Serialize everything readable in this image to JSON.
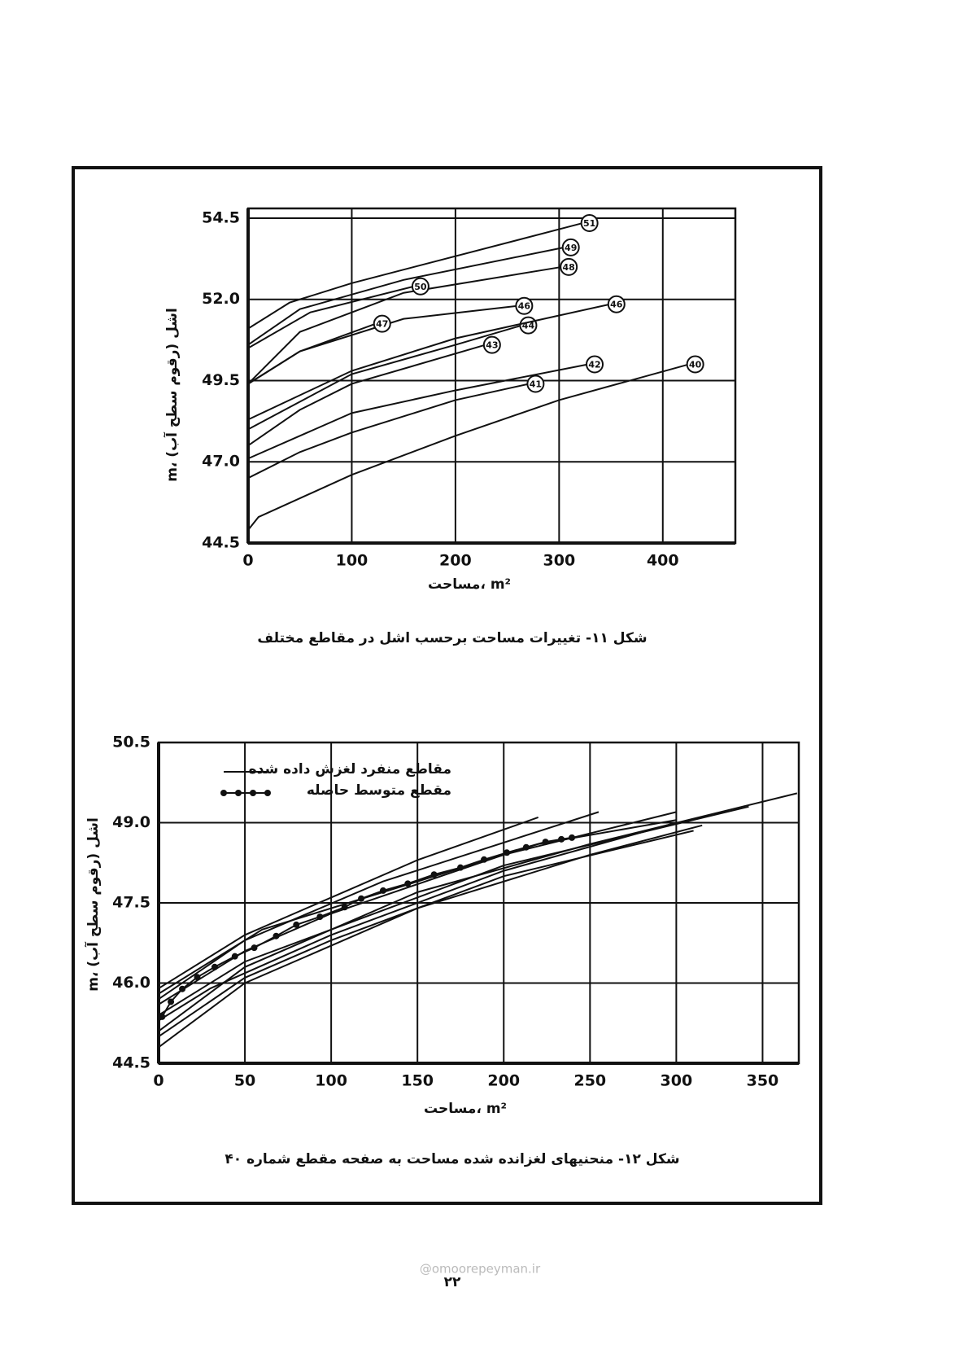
{
  "chart_data": [
    {
      "type": "line",
      "title": "شکل ۱۱- تغییرات مساحت برحسب اشل در مقاطع مختلف",
      "xlabel": "مساحت، m²",
      "ylabel": "m، اشل (رقوم سطح آب)",
      "xlim": [
        0,
        470
      ],
      "ylim": [
        44.5,
        54.8
      ],
      "xticks": [
        0,
        100,
        200,
        300,
        400
      ],
      "yticks": [
        44.5,
        {
          "value": 47,
          "label": "47.0"
        },
        49.5,
        {
          "value": 52,
          "label": "52.0"
        },
        54.5
      ],
      "grid": true,
      "legend": false,
      "series": [
        {
          "name": "40",
          "color": "#111",
          "x": [
            0,
            10,
            100,
            200,
            300,
            425
          ],
          "values": [
            44.9,
            45.3,
            46.6,
            47.8,
            48.9,
            50.0
          ]
        },
        {
          "name": "41",
          "color": "#111",
          "x": [
            0,
            50,
            100,
            200,
            271
          ],
          "values": [
            46.5,
            47.3,
            47.9,
            48.9,
            49.4
          ]
        },
        {
          "name": "42",
          "color": "#111",
          "x": [
            0,
            50,
            100,
            200,
            328
          ],
          "values": [
            47.1,
            47.8,
            48.5,
            49.2,
            50.0
          ]
        },
        {
          "name": "43",
          "color": "#111",
          "x": [
            0,
            50,
            100,
            229
          ],
          "values": [
            47.5,
            48.6,
            49.4,
            50.6
          ]
        },
        {
          "name": "44",
          "color": "#111",
          "x": [
            0,
            100,
            200,
            264
          ],
          "values": [
            48.0,
            49.7,
            50.6,
            51.2
          ]
        },
        {
          "name": "46",
          "color": "#111",
          "x": [
            0,
            100,
            200,
            349
          ],
          "values": [
            48.3,
            49.8,
            50.8,
            51.85
          ]
        },
        {
          "name": "46",
          "color": "#111",
          "x": [
            0,
            50,
            150,
            260
          ],
          "values": [
            49.4,
            50.4,
            51.4,
            51.8
          ]
        },
        {
          "name": "47",
          "color": "#111",
          "x": [
            0,
            50,
            123
          ],
          "values": [
            49.4,
            50.4,
            51.25
          ]
        },
        {
          "name": "48",
          "color": "#111",
          "x": [
            0,
            50,
            150,
            303
          ],
          "values": [
            49.4,
            51.0,
            52.2,
            53.0
          ]
        },
        {
          "name": "49",
          "color": "#111",
          "x": [
            0,
            50,
            150,
            305
          ],
          "values": [
            50.6,
            51.7,
            52.6,
            53.6
          ]
        },
        {
          "name": "50",
          "color": "#111",
          "x": [
            0,
            60,
            160
          ],
          "values": [
            50.5,
            51.6,
            52.4
          ]
        },
        {
          "name": "51",
          "color": "#111",
          "x": [
            0,
            40,
            100,
            323
          ],
          "values": [
            51.1,
            51.9,
            52.5,
            54.35
          ]
        }
      ]
    },
    {
      "type": "line",
      "title": "شکل ۱۲- منحنیهای لغزانده شده مساحت به صفحه مقطع شماره ۴۰",
      "xlabel": "مساحت، m²",
      "ylabel": "m، اشل (رقوم سطح آب)",
      "xlim": [
        0,
        371
      ],
      "ylim": [
        44.5,
        50.5
      ],
      "xticks": [
        0,
        50,
        100,
        150,
        200,
        250,
        300,
        350
      ],
      "yticks": [
        44.5,
        {
          "value": 46,
          "label": "46.0"
        },
        47.5,
        {
          "value": 49,
          "label": "49.0"
        },
        50.5
      ],
      "grid": true,
      "legend": "upper left",
      "series": [
        {
          "name": "مقاطع منفرد لغزش داده شده",
          "color": "#111",
          "x": [
            0,
            50,
            100,
            150,
            220
          ],
          "values": [
            45.9,
            46.9,
            47.6,
            48.3,
            49.1
          ]
        },
        {
          "color": "#111",
          "x": [
            0,
            50,
            130,
            255
          ],
          "values": [
            45.7,
            46.8,
            47.9,
            49.2
          ]
        },
        {
          "color": "#111",
          "x": [
            0,
            50,
            100,
            200,
            300
          ],
          "values": [
            45.6,
            46.6,
            47.3,
            48.4,
            49.2
          ]
        },
        {
          "color": "#111",
          "x": [
            0,
            50,
            100,
            200,
            342
          ],
          "values": [
            45.4,
            46.4,
            47.0,
            48.2,
            49.3
          ]
        },
        {
          "color": "#111",
          "x": [
            0,
            50,
            150,
            250,
            370
          ],
          "values": [
            45.1,
            46.3,
            47.7,
            48.6,
            49.55
          ]
        },
        {
          "color": "#111",
          "x": [
            0,
            50,
            150,
            250,
            315
          ],
          "values": [
            44.8,
            46.0,
            47.4,
            48.4,
            48.95
          ]
        },
        {
          "color": "#111",
          "x": [
            0,
            50,
            100,
            200,
            310
          ],
          "values": [
            45.0,
            46.1,
            46.8,
            48.0,
            48.85
          ]
        },
        {
          "color": "#111",
          "x": [
            0,
            30,
            100,
            200,
            300
          ],
          "values": [
            45.3,
            45.9,
            46.9,
            48.1,
            49.0
          ]
        },
        {
          "color": "#111",
          "x": [
            0,
            60,
            130,
            220,
            300
          ],
          "values": [
            45.8,
            47.0,
            47.7,
            48.6,
            49.05
          ]
        },
        {
          "name": "مقطع متوسط حاصله",
          "color": "#111",
          "marker": "o",
          "x": [
            2,
            7.1,
            13.7,
            22.4,
            32.5,
            44.2,
            55.4,
            68.1,
            79.8,
            93.5,
            107.8,
            117.4,
            130.1,
            144.4,
            159.6,
            174.9,
            188.6,
            201.8,
            213,
            224.2,
            233.4,
            239.5
          ],
          "values": [
            45.37,
            45.65,
            45.89,
            46.11,
            46.3,
            46.5,
            46.66,
            46.88,
            47.09,
            47.24,
            47.42,
            47.58,
            47.73,
            47.86,
            48.03,
            48.16,
            48.31,
            48.44,
            48.54,
            48.64,
            48.69,
            48.72
          ]
        }
      ]
    }
  ],
  "page": {
    "number": "۲۲",
    "watermark": "@omoorepeyman.ir"
  }
}
